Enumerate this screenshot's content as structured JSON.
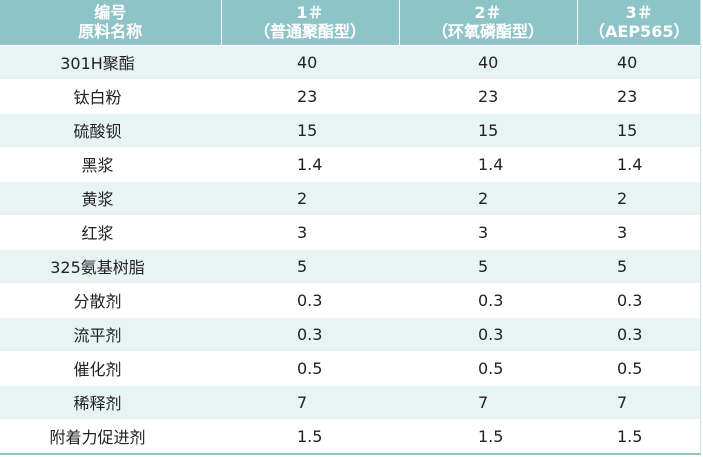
{
  "header": {
    "col0_line1": "编号",
    "col0_line2": "原料名称",
    "col1_line1": "1＃",
    "col1_line2": "（普通聚酯型）",
    "col2_line1": "2＃",
    "col2_line2": "（环氧磷酯型）",
    "col3_line1": "3＃",
    "col3_line2": "（AEP565）"
  },
  "rows": [
    {
      "name": "301H聚酯",
      "v1": "40",
      "v2": "40",
      "v3": "40"
    },
    {
      "name": "钛白粉",
      "v1": "23",
      "v2": "23",
      "v3": "23"
    },
    {
      "name": "硫酸钡",
      "v1": "15",
      "v2": "15",
      "v3": "15"
    },
    {
      "name": "黑浆",
      "v1": "1.4",
      "v2": "1.4",
      "v3": "1.4"
    },
    {
      "name": "黄浆",
      "v1": "2",
      "v2": "2",
      "v3": "2"
    },
    {
      "name": "红浆",
      "v1": "3",
      "v2": "3",
      "v3": "3"
    },
    {
      "name": "325氨基树脂",
      "v1": "5",
      "v2": "5",
      "v3": "5"
    },
    {
      "name": "分散剂",
      "v1": "0.3",
      "v2": "0.3",
      "v3": "0.3"
    },
    {
      "name": "流平剂",
      "v1": "0.3",
      "v2": "0.3",
      "v3": "0.3"
    },
    {
      "name": "催化剂",
      "v1": "0.5",
      "v2": "0.5",
      "v3": "0.5"
    },
    {
      "name": "稀释剂",
      "v1": "7",
      "v2": "7",
      "v3": "7"
    },
    {
      "name": "附着力促进剂",
      "v1": "1.5",
      "v2": "1.5",
      "v3": "1.5"
    }
  ],
  "colors": {
    "header_bg": "#8ec4c7",
    "row_alt_bg": "#e8f3f3",
    "row_bg": "#ffffff"
  }
}
